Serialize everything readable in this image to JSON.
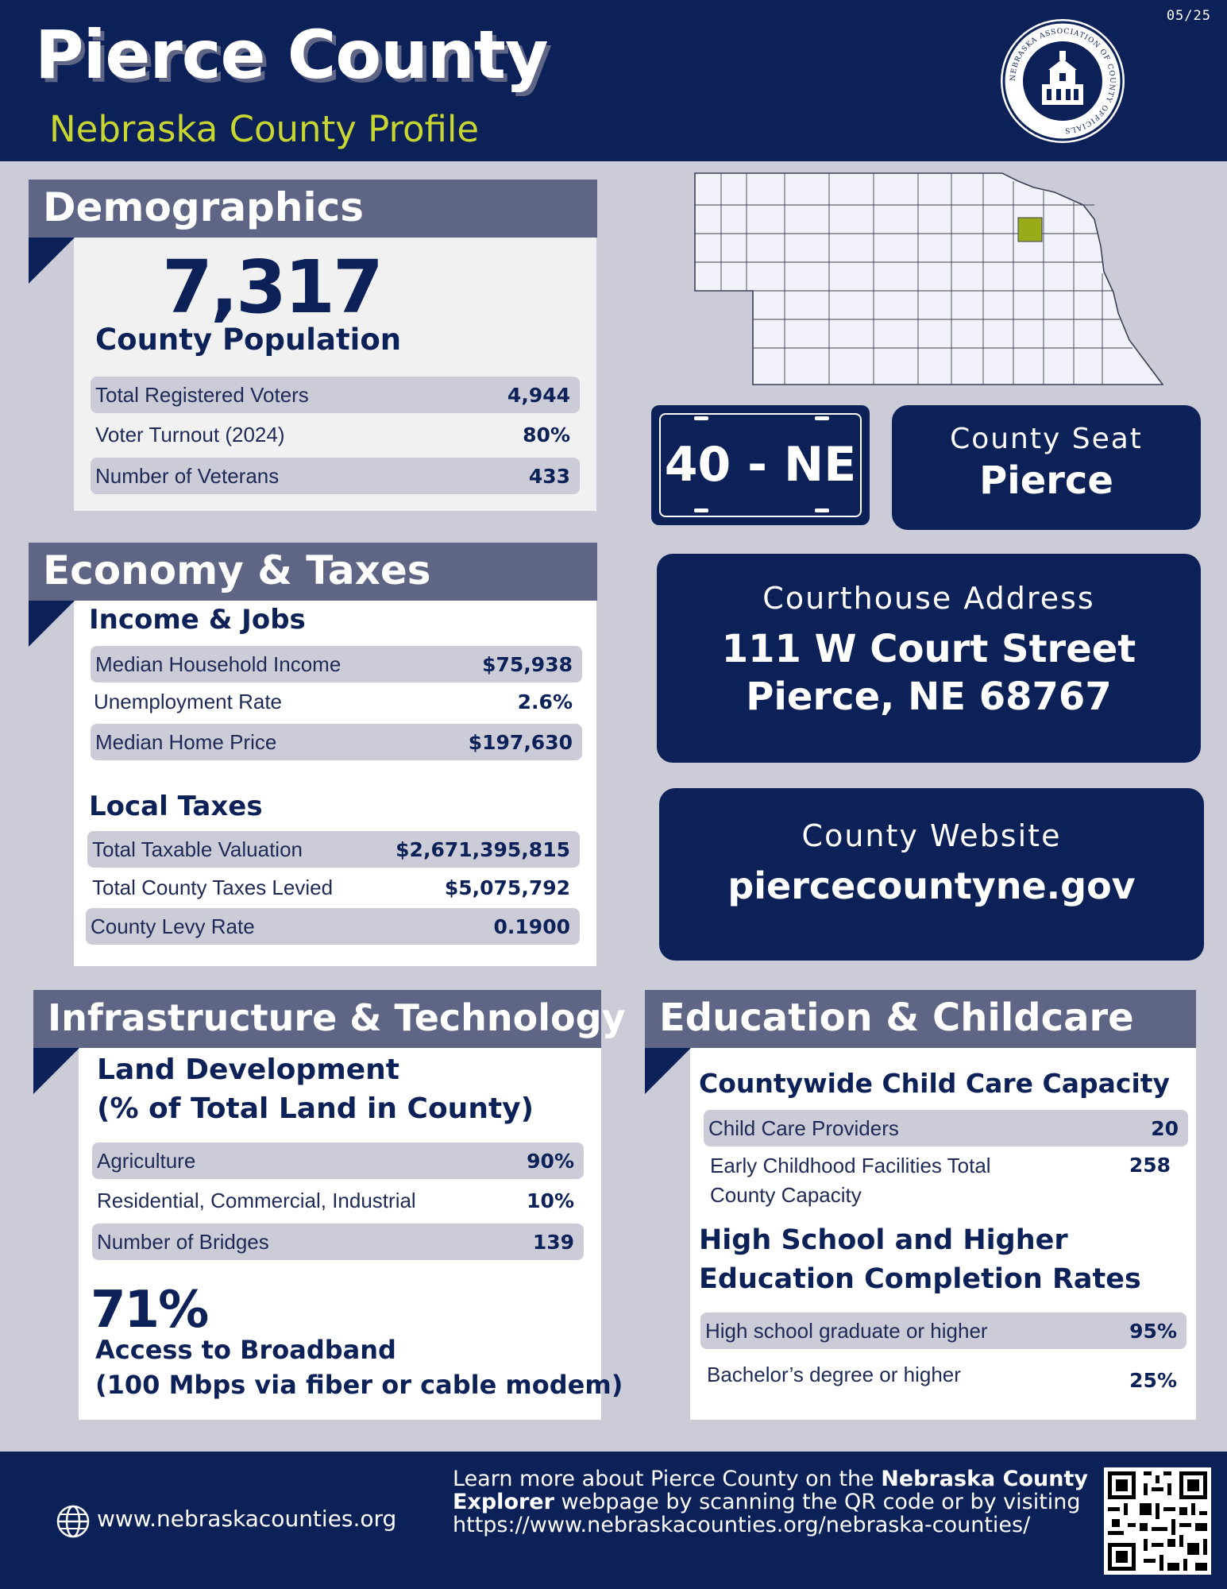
{
  "header": {
    "title": "Pierce County",
    "subtitle": "Nebraska County Profile",
    "date": "05/25",
    "seal_text": "NEBRASKA ASSOCIATION OF COUNTY OFFICIALS"
  },
  "demographics": {
    "heading": "Demographics",
    "population": "7,317",
    "population_label": "County Population",
    "rows": [
      {
        "label": "Total Registered Voters",
        "value": "4,944"
      },
      {
        "label": "Voter Turnout (2024)",
        "value": "80%"
      },
      {
        "label": "Number of Veterans",
        "value": "433"
      }
    ]
  },
  "economy": {
    "heading": "Economy & Taxes",
    "income_heading": "Income & Jobs",
    "income_rows": [
      {
        "label": "Median Household Income",
        "value": "$75,938"
      },
      {
        "label": "Unemployment Rate",
        "value": "2.6%"
      },
      {
        "label": "Median Home Price",
        "value": "$197,630"
      }
    ],
    "taxes_heading": "Local Taxes",
    "tax_rows": [
      {
        "label": "Total Taxable Valuation",
        "value": "$2,671,395,815"
      },
      {
        "label": "Total County Taxes Levied",
        "value": "$5,075,792"
      },
      {
        "label": "County Levy Rate",
        "value": "0.1900"
      }
    ]
  },
  "plate": {
    "text": "40 - NE"
  },
  "county_seat": {
    "label": "County Seat",
    "value": "Pierce"
  },
  "courthouse": {
    "label": "Courthouse Address",
    "line1": "111 W Court Street",
    "line2": "Pierce, NE 68767"
  },
  "website": {
    "label": "County Website",
    "value": "piercecountyne.gov"
  },
  "infrastructure": {
    "heading": "Infrastructure & Technology",
    "land_heading_1": "Land Development",
    "land_heading_2": "(% of Total Land in County)",
    "rows": [
      {
        "label": "Agriculture",
        "value": "90%"
      },
      {
        "label": "Residential, Commercial, Industrial",
        "value": "10%"
      },
      {
        "label": "Number of Bridges",
        "value": "139"
      }
    ],
    "broadband_pct": "71%",
    "broadband_label_1": "Access to Broadband",
    "broadband_label_2": "(100 Mbps via fiber or cable modem)"
  },
  "education": {
    "heading": "Education & Childcare",
    "childcare_heading": "Countywide Child Care Capacity",
    "childcare_rows": [
      {
        "label": "Child Care Providers",
        "value": "20"
      },
      {
        "label_1": "Early Childhood Facilities Total",
        "label_2": "County Capacity",
        "value": "258"
      }
    ],
    "completion_heading_1": "High School and Higher",
    "completion_heading_2": "Education Completion Rates",
    "completion_rows": [
      {
        "label": "High school graduate or higher",
        "value": "95%"
      },
      {
        "label": "Bachelor’s degree or higher",
        "value": "25%"
      }
    ]
  },
  "footer": {
    "site": "www.nebraskacounties.org",
    "learn_1": "Learn more about Pierce County on the ",
    "learn_bold": "Nebraska County Explorer",
    "learn_2": " webpage by scanning the QR code or by visiting https://www.nebraskacounties.org/nebraska-counties/"
  },
  "colors": {
    "navy": "#0c2158",
    "slate": "#5e6585",
    "lime": "#c7d630",
    "bg": "#cbccd8"
  }
}
